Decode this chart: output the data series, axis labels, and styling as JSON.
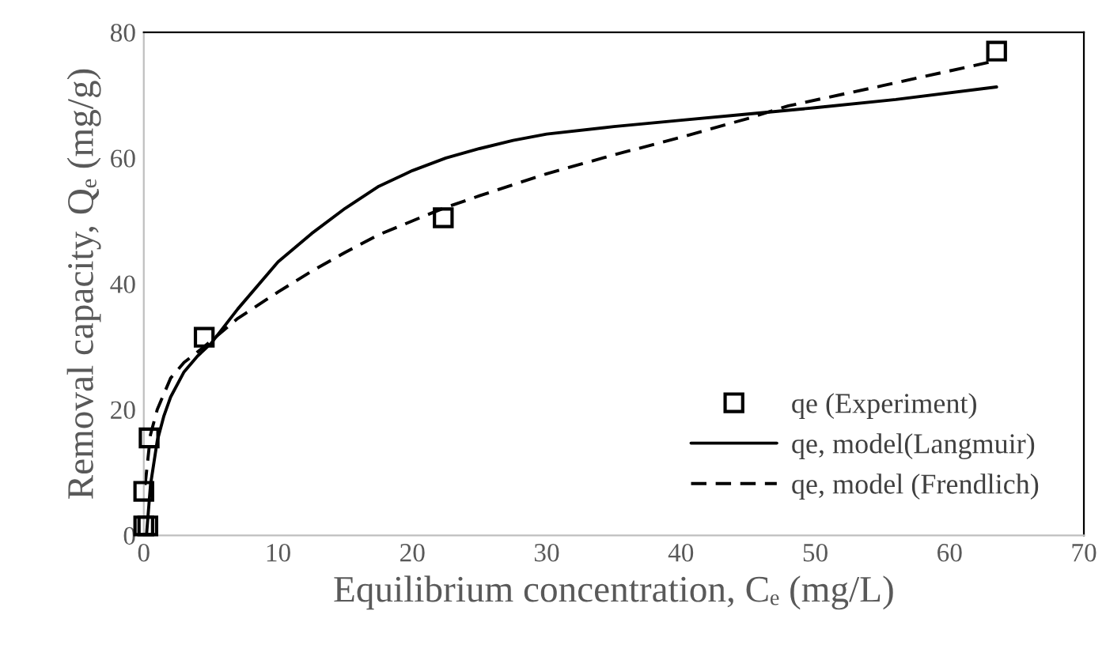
{
  "chart_data": {
    "type": "scatter",
    "xlabel": "Equilibrium concentration, Cₑ (mg/L)",
    "ylabel": "Removal capacity, Qₑ (mg/g)",
    "xlim": [
      0,
      70
    ],
    "xticks": [
      0,
      10,
      20,
      30,
      40,
      50,
      60,
      70
    ],
    "ylim": [
      0,
      80
    ],
    "yticks": [
      0,
      20,
      40,
      60,
      80
    ],
    "grid": false,
    "legend": "bottom right",
    "series": [
      {
        "name": "qe (Experiment)",
        "marker": "square",
        "color": "#000000",
        "x": [
          0,
          0.3,
          0,
          0.4,
          4.5,
          22.3,
          63.5
        ],
        "values": [
          1.5,
          1.5,
          7,
          15.5,
          31.5,
          50.5,
          77
        ]
      },
      {
        "name": "qe, model(Langmuir)",
        "type": "line",
        "line_style": "solid",
        "color": "#000000",
        "x": [
          0.2,
          0.5,
          1,
          1.5,
          2,
          3,
          4,
          5,
          7,
          10,
          12.5,
          15,
          17.5,
          20,
          22.5,
          25,
          27.5,
          30,
          35,
          40,
          45,
          50,
          56,
          63.5
        ],
        "values": [
          0,
          8,
          15,
          19,
          22,
          26,
          28.5,
          30.5,
          36,
          43.5,
          48,
          52,
          55.5,
          58,
          60,
          61.5,
          62.8,
          63.8,
          65,
          66,
          67,
          68,
          69.3,
          71.3
        ]
      },
      {
        "name": "qe, model (Frendlich)",
        "type": "line",
        "line_style": "dashed",
        "color": "#000000",
        "x": [
          0.1,
          0.5,
          1,
          2,
          3,
          4.5,
          7,
          10,
          12.5,
          15,
          17.5,
          20,
          22.3,
          25,
          30,
          35,
          40,
          45,
          48,
          55,
          63.5
        ],
        "values": [
          8,
          16,
          20,
          25,
          27.5,
          30,
          34.5,
          38.7,
          42,
          45,
          47.8,
          50,
          52,
          54,
          57.5,
          60.5,
          63.3,
          66.3,
          68.3,
          71.5,
          75.5
        ]
      }
    ]
  }
}
